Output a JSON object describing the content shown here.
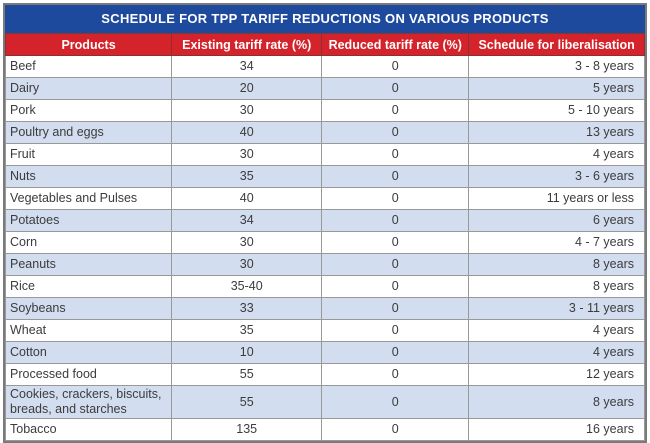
{
  "title": "SCHEDULE FOR TPP TARIFF REDUCTIONS ON VARIOUS PRODUCTS",
  "colors": {
    "title_bar_background": "#1e4a9d",
    "header_row_background": "#d4232a",
    "header_text": "#ffffff",
    "alt_row_background": "#d2ddef",
    "row_background": "#ffffff",
    "grid_border": "#999999",
    "outer_border": "#7a7a7a",
    "body_text": "#3c3c3c"
  },
  "chart_data": {
    "type": "table",
    "title": "SCHEDULE FOR TPP TARIFF REDUCTIONS ON VARIOUS PRODUCTS",
    "columns": [
      "Products",
      "Existing tariff rate (%)",
      "Reduced tariff rate (%)",
      "Schedule for liberalisation"
    ],
    "rows": [
      [
        "Beef",
        "34",
        "0",
        "3 - 8 years"
      ],
      [
        "Dairy",
        "20",
        "0",
        "5 years"
      ],
      [
        "Pork",
        "30",
        "0",
        "5 - 10 years"
      ],
      [
        "Poultry and eggs",
        "40",
        "0",
        "13 years"
      ],
      [
        "Fruit",
        "30",
        "0",
        "4 years"
      ],
      [
        "Nuts",
        "35",
        "0",
        "3 - 6 years"
      ],
      [
        "Vegetables and Pulses",
        "40",
        "0",
        "11 years or less"
      ],
      [
        "Potatoes",
        "34",
        "0",
        "6 years"
      ],
      [
        "Corn",
        "30",
        "0",
        "4 - 7 years"
      ],
      [
        "Peanuts",
        "30",
        "0",
        "8 years"
      ],
      [
        "Rice",
        "35-40",
        "0",
        "8 years"
      ],
      [
        "Soybeans",
        "33",
        "0",
        "3 - 11 years"
      ],
      [
        "Wheat",
        "35",
        "0",
        "4 years"
      ],
      [
        "Cotton",
        "10",
        "0",
        "4 years"
      ],
      [
        "Processed food",
        "55",
        "0",
        "12 years"
      ],
      [
        "Cookies, crackers, biscuits, breads, and starches",
        "55",
        "0",
        "8 years"
      ],
      [
        "Tobacco",
        "135",
        "0",
        "16 years"
      ]
    ]
  }
}
